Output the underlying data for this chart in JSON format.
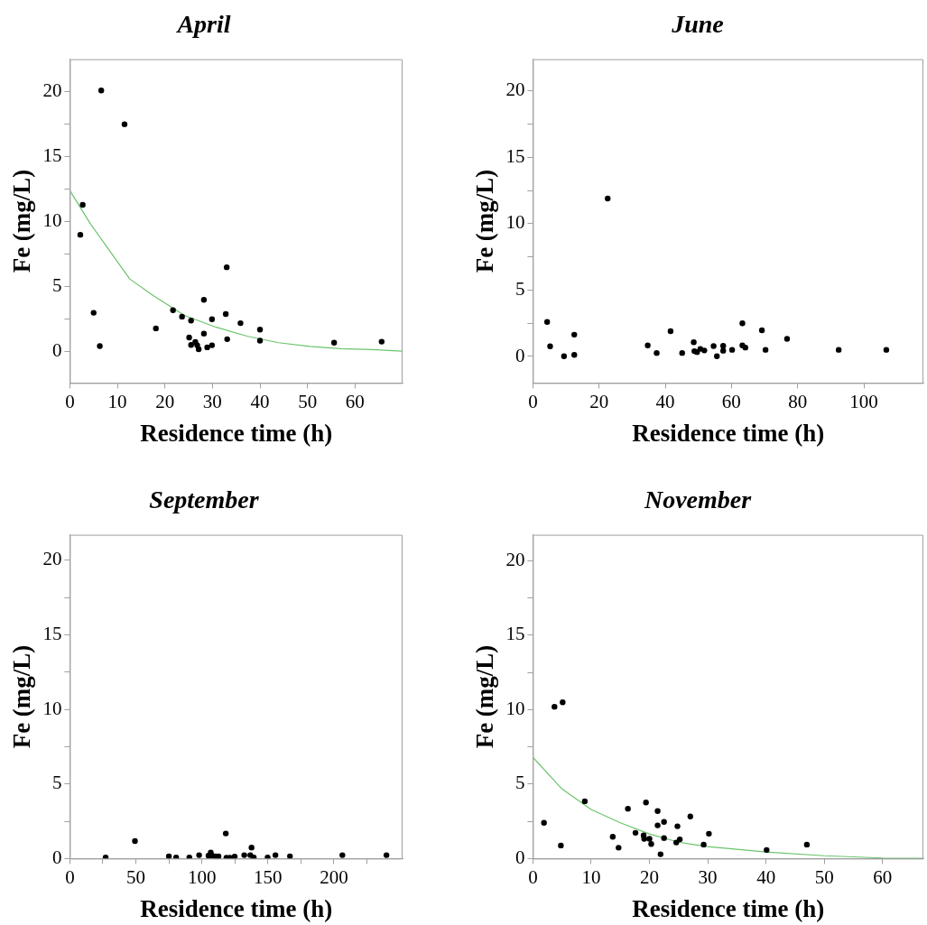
{
  "chart_data": [
    {
      "type": "scatter",
      "title": "April",
      "xlabel": "Residence time (h)",
      "ylabel": "Fe (mg/L)",
      "xlim": [
        0,
        70
      ],
      "ylim": [
        -2.4,
        22.5
      ],
      "xticks": [
        0,
        10,
        20,
        30,
        40,
        50,
        60
      ],
      "yticks": [
        0,
        {
          "value": 2.5,
          "label": null
        },
        5,
        {
          "value": 7.5,
          "label": null
        },
        10,
        {
          "value": 12.5,
          "label": null
        },
        15,
        {
          "value": 17.5,
          "label": null
        },
        20
      ],
      "grid": false,
      "legend": false,
      "marker": "circle",
      "series": [
        {
          "type": "scatter",
          "color": "#000000",
          "x": [
            6.6,
            11.5,
            2.7,
            2.2,
            33.0,
            28.2,
            5.0,
            21.7,
            32.8,
            23.6,
            25.5,
            29.9,
            35.9,
            18.1,
            40.0,
            28.2,
            25.1,
            26.4,
            33.1,
            40.0,
            25.5,
            26.8,
            27.1,
            28.9,
            29.9,
            6.3,
            55.6,
            65.6
          ],
          "values": [
            20.1,
            17.5,
            11.3,
            9.0,
            6.5,
            4.0,
            3.0,
            3.2,
            2.9,
            2.7,
            2.4,
            2.5,
            2.2,
            1.8,
            1.7,
            1.4,
            1.1,
            0.75,
            0.97,
            0.85,
            0.53,
            0.5,
            0.2,
            0.34,
            0.5,
            0.44,
            0.7,
            0.78
          ]
        },
        {
          "type": "line",
          "color": "#6cc46c",
          "marker": "none",
          "x": [
            0,
            4.4,
            12.6,
            17.6,
            24.1,
            30.7,
            37.3,
            43.9,
            50.5,
            57,
            63.6,
            69.9
          ],
          "values": [
            12.4,
            9.8,
            5.6,
            4.3,
            2.8,
            1.9,
            1.2,
            0.7,
            0.41,
            0.24,
            0.17,
            0.05
          ]
        }
      ]
    },
    {
      "type": "scatter",
      "title": "June",
      "xlabel": "Residence time (h)",
      "ylabel": "Fe (mg/L)",
      "xlim": [
        0,
        118
      ],
      "ylim": [
        -2.0,
        22.4
      ],
      "xticks": [
        0,
        20,
        40,
        60,
        80,
        100
      ],
      "yticks": [
        0,
        {
          "value": 2.5,
          "label": null
        },
        5,
        {
          "value": 7.5,
          "label": null
        },
        10,
        {
          "value": 12.5,
          "label": null
        },
        15,
        {
          "value": 17.5,
          "label": null
        },
        20
      ],
      "grid": false,
      "legend": false,
      "marker": "circle",
      "series": [
        {
          "type": "scatter",
          "color": "#000000",
          "x": [
            4.3,
            5.2,
            9.4,
            12.5,
            12.5,
            22.6,
            34.7,
            37.4,
            41.6,
            45.1,
            48.6,
            48.8,
            49.6,
            50.6,
            51.8,
            54.6,
            55.6,
            57.5,
            57.5,
            60.2,
            63.3,
            63.3,
            64.2,
            69.2,
            70.3,
            76.8,
            92.4,
            106.8
          ],
          "values": [
            2.6,
            0.76,
            0.02,
            1.64,
            0.12,
            11.9,
            0.83,
            0.26,
            1.9,
            0.26,
            1.07,
            0.4,
            0.33,
            0.57,
            0.45,
            0.78,
            0.02,
            0.8,
            0.43,
            0.5,
            2.5,
            0.83,
            0.67,
            1.97,
            0.5,
            1.33,
            0.5,
            0.5
          ]
        }
      ]
    },
    {
      "type": "scatter",
      "title": "September",
      "xlabel": "Residence time (h)",
      "ylabel": "Fe (mg/L)",
      "xlim": [
        0,
        252
      ],
      "ylim": [
        0,
        21.7
      ],
      "xticks": [
        0,
        {
          "value": 25,
          "label": null
        },
        50,
        {
          "value": 75,
          "label": null
        },
        100,
        {
          "value": 125,
          "label": null
        },
        150,
        {
          "value": 175,
          "label": null
        },
        200,
        {
          "value": 225,
          "label": null
        }
      ],
      "yticks": [
        0,
        {
          "value": 2.5,
          "label": null
        },
        5,
        {
          "value": 7.5,
          "label": null
        },
        10,
        {
          "value": 12.5,
          "label": null
        },
        15,
        {
          "value": 17.5,
          "label": null
        },
        20
      ],
      "grid": false,
      "legend": false,
      "marker": "circle",
      "series": [
        {
          "type": "scatter",
          "color": "#000000",
          "x": [
            27.1,
            49.3,
            75.0,
            80.5,
            90.5,
            97.9,
            105.0,
            106.7,
            107.9,
            110.5,
            112.6,
            118.1,
            118.6,
            121.2,
            124.8,
            132.1,
            136.7,
            137.6,
            139.3,
            149.8,
            155.7,
            166.7,
            206.4,
            239.8
          ],
          "values": [
            0.08,
            1.17,
            0.15,
            0.08,
            0.08,
            0.23,
            0.19,
            0.4,
            0.19,
            0.15,
            0.15,
            1.68,
            0.06,
            0.06,
            0.13,
            0.23,
            0.23,
            0.74,
            0.08,
            0.08,
            0.23,
            0.15,
            0.23,
            0.23
          ]
        }
      ]
    },
    {
      "type": "scatter",
      "title": "November",
      "xlabel": "Residence time (h)",
      "ylabel": "Fe (mg/L)",
      "xlim": [
        0,
        67
      ],
      "ylim": [
        0,
        21.75
      ],
      "xticks": [
        0,
        10,
        20,
        30,
        40,
        50,
        60
      ],
      "yticks": [
        0,
        {
          "value": 2.5,
          "label": null
        },
        5,
        {
          "value": 7.5,
          "label": null
        },
        10,
        {
          "value": 12.5,
          "label": null
        },
        15,
        {
          "value": 17.5,
          "label": null
        },
        20
      ],
      "grid": false,
      "legend": false,
      "marker": "circle",
      "series": [
        {
          "type": "scatter",
          "color": "#000000",
          "x": [
            1.9,
            3.7,
            5.1,
            4.8,
            8.9,
            13.7,
            14.7,
            16.3,
            17.6,
            19.0,
            19.1,
            19.4,
            20.0,
            20.3,
            21.4,
            21.4,
            21.9,
            22.5,
            22.5,
            24.6,
            24.8,
            25.2,
            27.0,
            29.3,
            30.2,
            40.1,
            47.0
          ],
          "values": [
            2.4,
            10.2,
            10.5,
            0.88,
            3.85,
            1.46,
            0.73,
            3.35,
            1.73,
            1.56,
            1.33,
            3.77,
            1.33,
            0.98,
            3.19,
            2.23,
            0.29,
            1.38,
            2.46,
            1.08,
            2.17,
            1.29,
            2.83,
            0.94,
            1.67,
            0.58,
            0.94
          ]
        },
        {
          "type": "line",
          "color": "#6cc46c",
          "marker": "none",
          "x": [
            0,
            5,
            10,
            15,
            20,
            25,
            30,
            40,
            50,
            60,
            67
          ],
          "values": [
            6.8,
            4.67,
            3.3,
            2.4,
            1.65,
            1.1,
            0.8,
            0.44,
            0.19,
            0.04,
            0.02
          ]
        }
      ]
    }
  ]
}
